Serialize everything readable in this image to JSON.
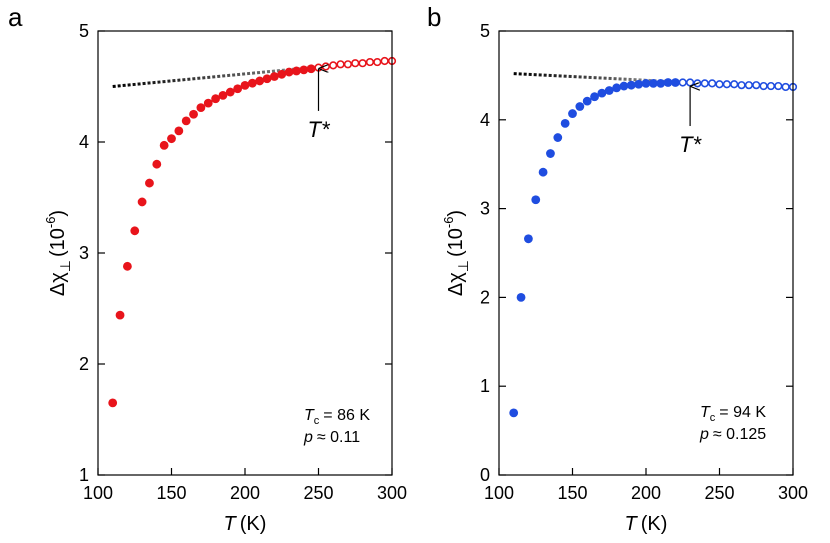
{
  "chart_data": [
    {
      "type": "scatter",
      "panel_label": "a",
      "xlabel_symbol": "T",
      "xlabel_unit": "(K)",
      "ylabel_prefix": "Δχ",
      "ylabel_sub": "⊥",
      "ylabel_unit_open": "(10",
      "ylabel_exp": "-6",
      "ylabel_unit_close": ")",
      "xlim": [
        100,
        300
      ],
      "ylim": [
        1,
        5
      ],
      "xticks": [
        100,
        150,
        200,
        250,
        300
      ],
      "yticks": [
        1,
        2,
        3,
        4,
        5
      ],
      "color": "#e8141b",
      "x": [
        110,
        115,
        120,
        125,
        130,
        135,
        140,
        145,
        150,
        155,
        160,
        165,
        170,
        175,
        180,
        185,
        190,
        195,
        200,
        205,
        210,
        215,
        220,
        225,
        230,
        235,
        240,
        245,
        250,
        255,
        260,
        265,
        270,
        275,
        280,
        285,
        290,
        295,
        300
      ],
      "y": [
        1.65,
        2.44,
        2.88,
        3.2,
        3.46,
        3.63,
        3.8,
        3.97,
        4.03,
        4.1,
        4.19,
        4.25,
        4.31,
        4.35,
        4.39,
        4.42,
        4.45,
        4.48,
        4.51,
        4.53,
        4.55,
        4.57,
        4.59,
        4.61,
        4.63,
        4.64,
        4.65,
        4.66,
        4.67,
        4.68,
        4.69,
        4.7,
        4.7,
        4.71,
        4.71,
        4.72,
        4.72,
        4.73,
        4.73
      ],
      "baseline": {
        "x": [
          110,
          300
        ],
        "y": [
          4.5,
          4.74
        ]
      },
      "tstar": {
        "label": "T*",
        "x": 250,
        "arrow_to_y": 4.68,
        "arrow_from_y": 4.28
      },
      "tc_symbol": "T",
      "tc_sub": "c",
      "tc_value": "= 86 K",
      "p_symbol": "p",
      "p_value": "≈ 0.11"
    },
    {
      "type": "scatter",
      "panel_label": "b",
      "xlabel_symbol": "T",
      "xlabel_unit": "(K)",
      "ylabel_prefix": "Δχ",
      "ylabel_sub": "⊥",
      "ylabel_unit_open": "(10",
      "ylabel_exp": "-6",
      "ylabel_unit_close": ")",
      "xlim": [
        100,
        300
      ],
      "ylim": [
        0,
        5
      ],
      "xticks": [
        100,
        150,
        200,
        250,
        300
      ],
      "yticks": [
        0,
        1,
        2,
        3,
        4,
        5
      ],
      "color": "#1f4de0",
      "x": [
        110,
        115,
        120,
        125,
        130,
        135,
        140,
        145,
        150,
        155,
        160,
        165,
        170,
        175,
        180,
        185,
        190,
        195,
        200,
        205,
        210,
        215,
        220,
        225,
        230,
        235,
        240,
        245,
        250,
        255,
        260,
        265,
        270,
        275,
        280,
        285,
        290,
        295,
        300
      ],
      "y": [
        0.7,
        2.0,
        2.66,
        3.1,
        3.41,
        3.62,
        3.8,
        3.96,
        4.07,
        4.15,
        4.21,
        4.26,
        4.3,
        4.33,
        4.36,
        4.38,
        4.39,
        4.4,
        4.41,
        4.41,
        4.41,
        4.42,
        4.42,
        4.42,
        4.42,
        4.41,
        4.41,
        4.41,
        4.4,
        4.4,
        4.4,
        4.39,
        4.39,
        4.39,
        4.38,
        4.38,
        4.38,
        4.37,
        4.37
      ],
      "baseline": {
        "x": [
          110,
          230
        ],
        "y": [
          4.52,
          4.42
        ]
      },
      "tstar": {
        "label": "T*",
        "x": 230,
        "arrow_to_y": 4.4,
        "arrow_from_y": 3.93
      },
      "tc_symbol": "T",
      "tc_sub": "c",
      "tc_value": "= 94 K",
      "p_symbol": "p",
      "p_value": "≈ 0.125"
    }
  ]
}
